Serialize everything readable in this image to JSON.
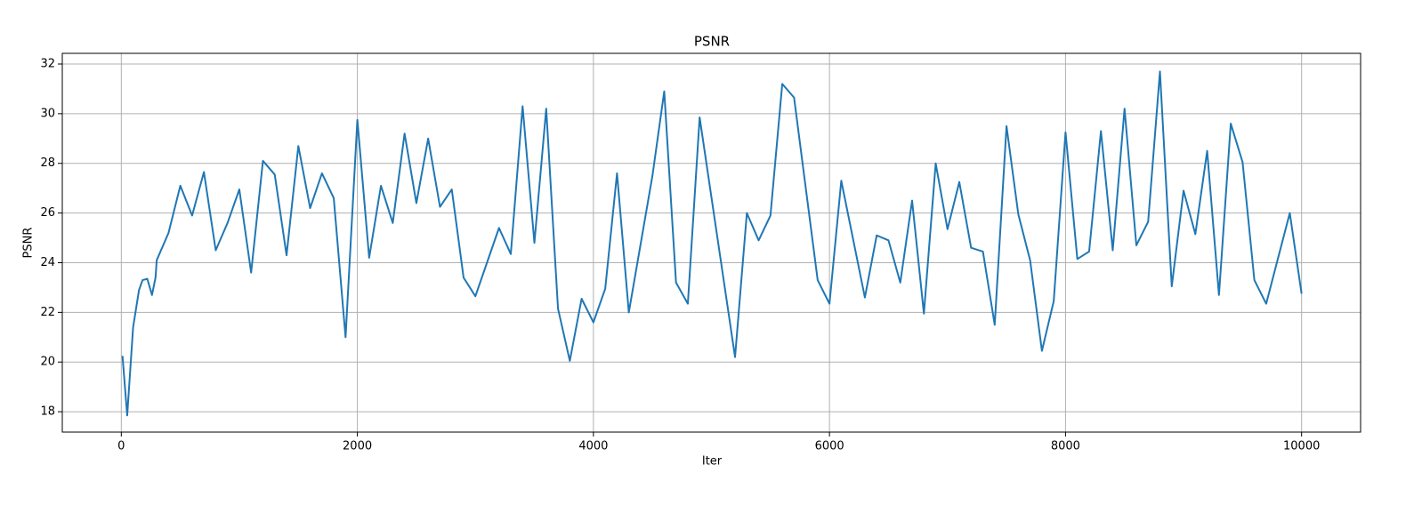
{
  "chart_data": {
    "type": "line",
    "title": "PSNR",
    "x_label": "Iter",
    "y_label": "PSNR",
    "series": [
      {
        "name": "PSNR",
        "color": "#1f77b4",
        "x": [
          10,
          50,
          100,
          150,
          180,
          220,
          260,
          290,
          300,
          400,
          500,
          600,
          700,
          800,
          900,
          1000,
          1100,
          1200,
          1300,
          1400,
          1500,
          1600,
          1700,
          1800,
          1900,
          2000,
          2100,
          2200,
          2300,
          2400,
          2500,
          2600,
          2700,
          2800,
          2900,
          3000,
          3200,
          3300,
          3400,
          3500,
          3600,
          3700,
          3800,
          3900,
          4000,
          4100,
          4200,
          4300,
          4500,
          4600,
          4700,
          4800,
          4900,
          5200,
          5300,
          5400,
          5500,
          5600,
          5700,
          5900,
          6000,
          6100,
          6300,
          6400,
          6500,
          6600,
          6700,
          6800,
          6900,
          7000,
          7100,
          7200,
          7300,
          7400,
          7500,
          7600,
          7700,
          7800,
          7900,
          8000,
          8100,
          8200,
          8300,
          8400,
          8500,
          8600,
          8700,
          8800,
          8900,
          9000,
          9100,
          9200,
          9300,
          9400,
          9500,
          9600,
          9700,
          9900,
          10000
        ],
        "values": [
          20.25,
          17.85,
          21.4,
          22.9,
          23.3,
          23.35,
          22.7,
          23.4,
          24.1,
          25.2,
          27.1,
          25.9,
          27.65,
          24.5,
          25.6,
          26.95,
          23.6,
          28.1,
          27.55,
          24.3,
          28.7,
          26.2,
          27.6,
          26.6,
          21.0,
          29.75,
          24.2,
          27.1,
          25.6,
          29.2,
          26.4,
          29.0,
          26.25,
          26.95,
          23.4,
          22.65,
          25.4,
          24.35,
          30.3,
          24.8,
          30.2,
          22.15,
          20.05,
          22.55,
          21.6,
          22.95,
          27.6,
          22.0,
          27.5,
          30.9,
          23.2,
          22.35,
          29.85,
          20.2,
          26.0,
          24.9,
          25.9,
          31.2,
          30.65,
          23.3,
          22.35,
          27.3,
          22.6,
          25.1,
          24.9,
          23.2,
          26.5,
          21.95,
          28.0,
          25.35,
          27.25,
          24.6,
          24.45,
          21.5,
          29.5,
          25.95,
          24.1,
          20.45,
          22.45,
          29.25,
          24.15,
          24.45,
          29.3,
          24.5,
          30.2,
          24.7,
          25.65,
          31.7,
          23.05,
          26.9,
          25.15,
          28.5,
          22.7,
          29.6,
          28.05,
          23.3,
          22.35,
          26.0,
          22.75
        ]
      }
    ],
    "xlim": [
      -500,
      10500
    ],
    "xticks": [
      0,
      2000,
      4000,
      6000,
      8000,
      10000
    ],
    "ylim": [
      17.18,
      32.43
    ],
    "yticks": [
      18,
      20,
      22,
      24,
      26,
      28,
      30,
      32
    ],
    "grid": true
  }
}
